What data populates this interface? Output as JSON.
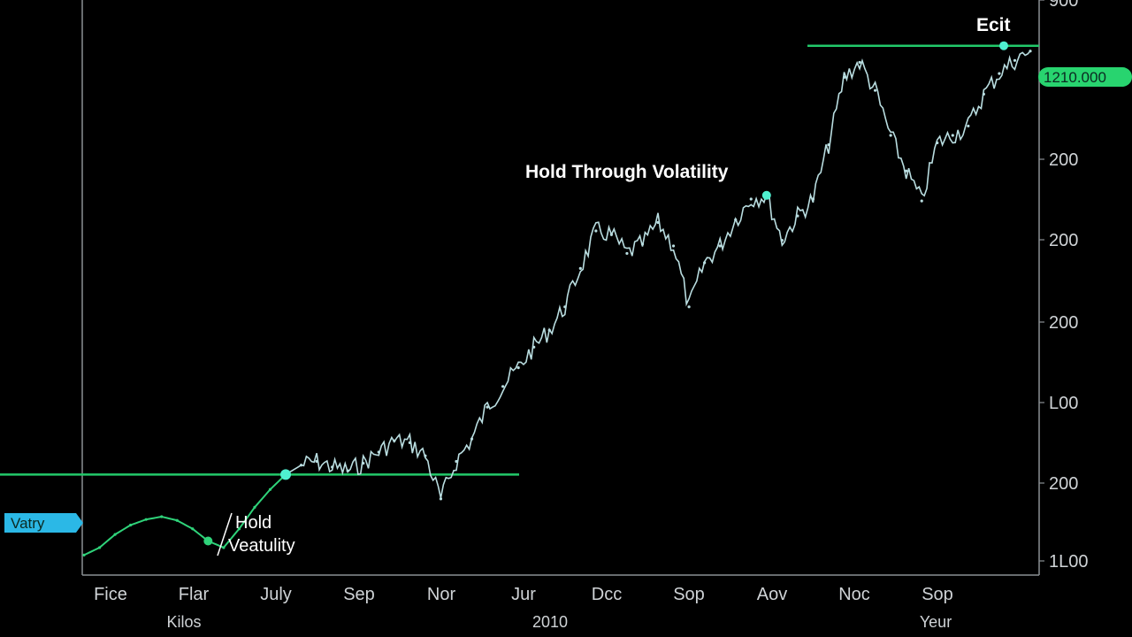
{
  "chart_data": {
    "type": "line",
    "title": "",
    "xlabel": "",
    "ylabel": "",
    "x_tick_labels": [
      "Fice",
      "Flar",
      "July",
      "Sep",
      "Nor",
      "Jur",
      "Dcc",
      "Sop",
      "Aov",
      "Noc",
      "Sop"
    ],
    "x_group_labels": [
      "Kilos",
      "2010",
      "Yeur"
    ],
    "y_tick_labels": [
      "900",
      "200",
      "200",
      "200",
      "L00",
      "200",
      "1L00"
    ],
    "grid": false,
    "legend": "none",
    "series": [
      {
        "values": [
          90,
          98,
          112,
          122,
          128,
          131,
          127,
          118,
          105,
          98,
          118,
          141,
          160,
          176,
          186,
          190,
          184,
          180,
          188,
          200,
          212,
          210,
          196,
          150,
          190,
          214,
          248,
          270,
          290,
          312,
          330,
          355,
          396,
          436,
          432,
          412,
          422,
          445,
          420,
          355,
          402,
          420,
          448,
          470,
          474,
          426,
          452,
          470,
          528,
          600,
          616,
          586,
          538,
          500,
          468,
          530,
          538,
          548,
          582,
          604,
          618,
          628
        ]
      }
    ],
    "annotations": {
      "entry_tag": "Vatry",
      "hold_early": [
        "Hold",
        "Veatulity"
      ],
      "hold_mid": "Hold Through Volatility",
      "exit": "Ecit",
      "price_tag": "1210.000"
    },
    "colors": {
      "line": "#b9dde0",
      "early_line": "#2fd37a",
      "level_line": "#22c96a",
      "entry_tag_fill": "#2bb8e6",
      "price_tag_fill": "#28d46f",
      "marker": "#4ff0d0",
      "axis": "#8a8f94",
      "text": "#cfd3d6"
    }
  }
}
